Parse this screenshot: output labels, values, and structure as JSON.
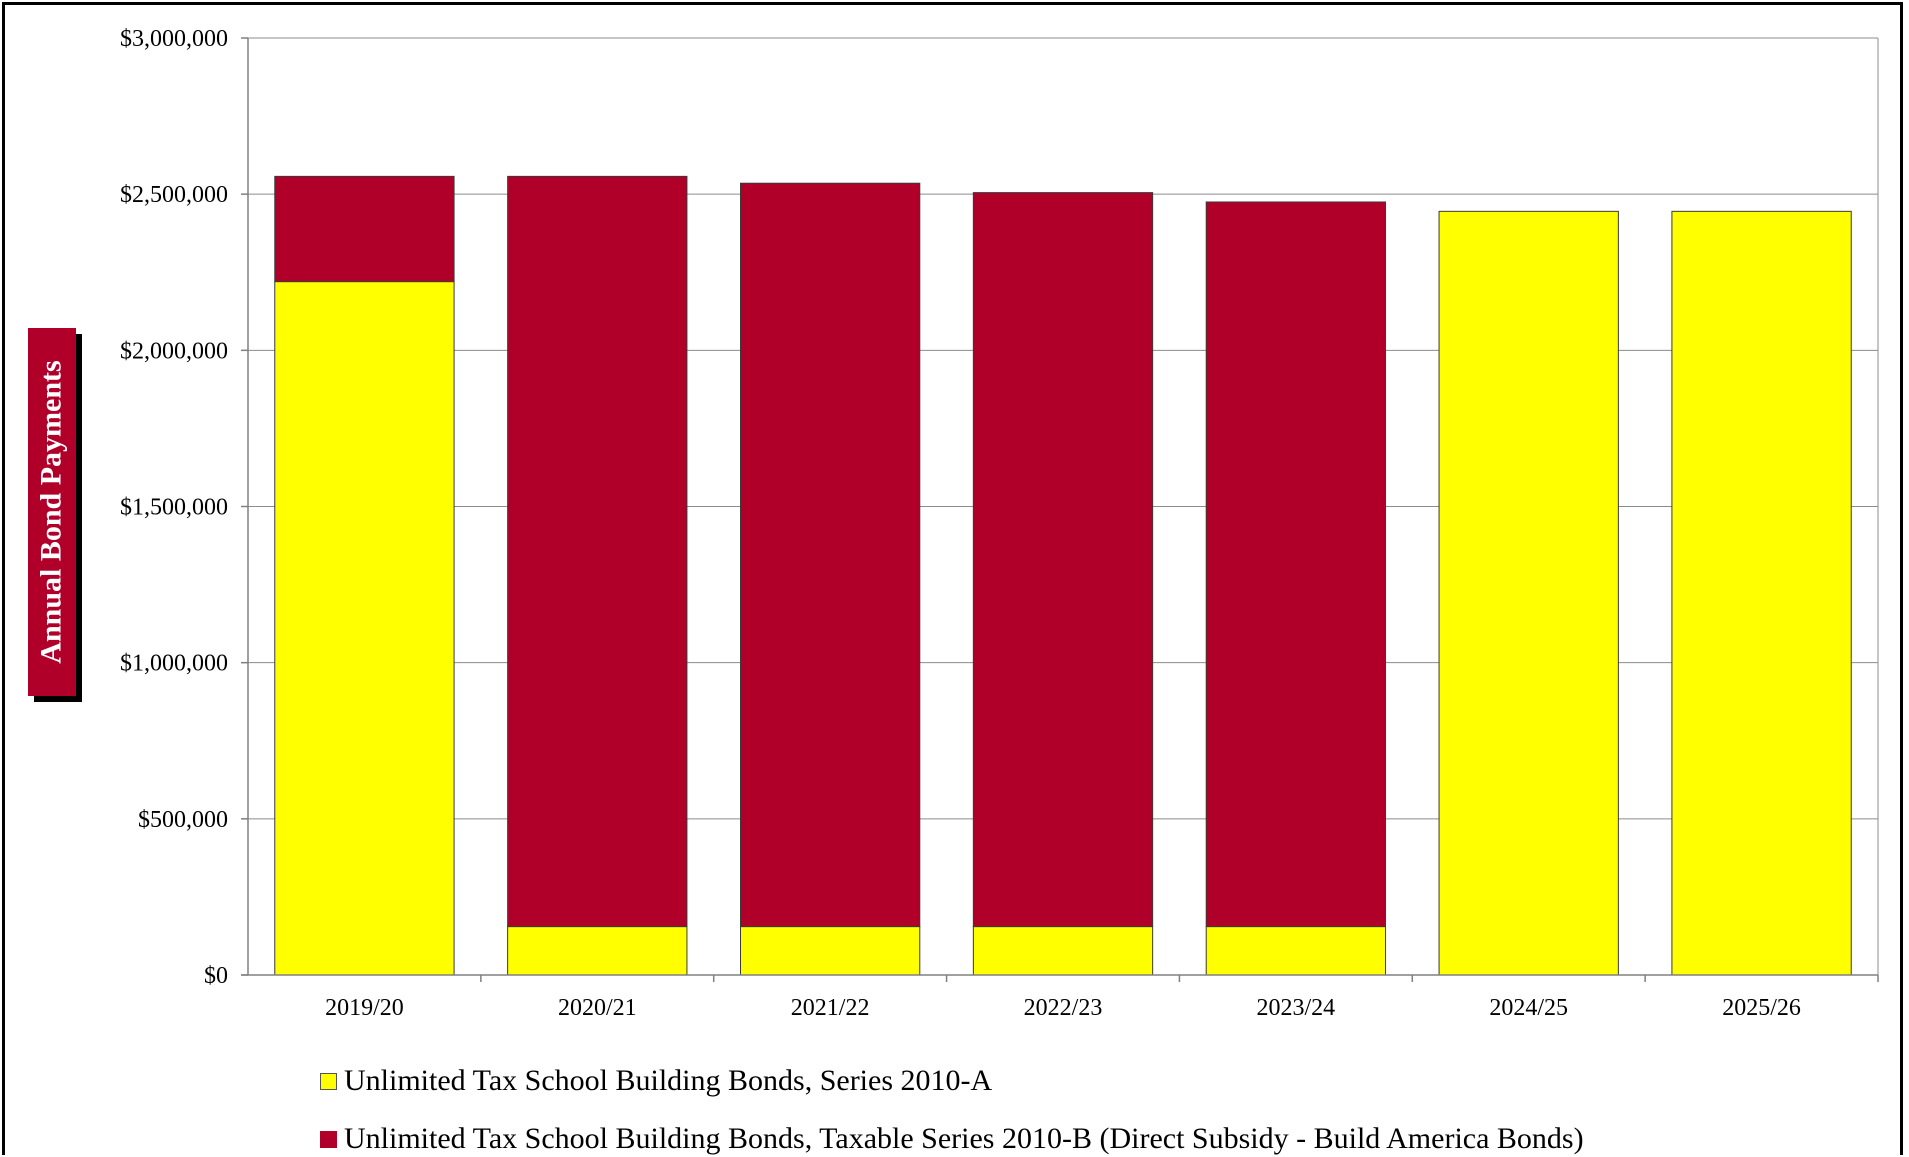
{
  "chart_data": {
    "type": "bar",
    "stacked": true,
    "ylabel": "Annual Bond Payments",
    "ylim": [
      0,
      3000000
    ],
    "yticks": [
      "$0",
      "$500,000",
      "$1,000,000",
      "$1,500,000",
      "$2,000,000",
      "$2,500,000",
      "$3,000,000"
    ],
    "ytick_values": [
      0,
      500000,
      1000000,
      1500000,
      2000000,
      2500000,
      3000000
    ],
    "categories": [
      "2019/20",
      "2020/21",
      "2021/22",
      "2022/23",
      "2023/24",
      "2024/25",
      "2025/26"
    ],
    "grid": true,
    "legend_position": "bottom",
    "series": [
      {
        "name": "Unlimited Tax School Building Bonds, Series 2010-A",
        "color": "#ffff00",
        "values": [
          2220000,
          155000,
          155000,
          155000,
          155000,
          2445000,
          2445000
        ]
      },
      {
        "name": "Unlimited Tax School Building Bonds, Taxable Series 2010-B (Direct Subsidy - Build America Bonds)",
        "color": "#b0002a",
        "values": [
          337000,
          2402000,
          2380000,
          2350000,
          2320000,
          0,
          0
        ]
      }
    ]
  }
}
